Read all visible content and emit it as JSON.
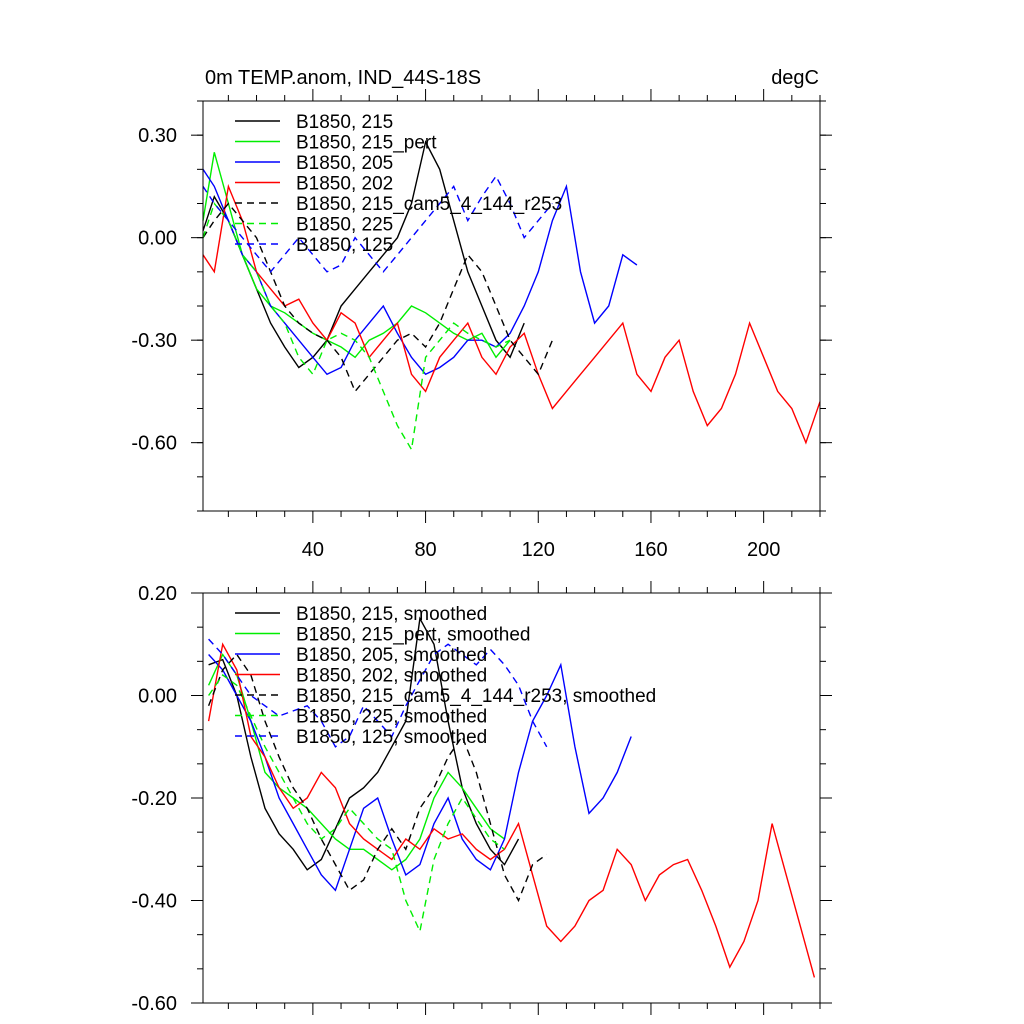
{
  "chart_data": [
    {
      "type": "line",
      "title": "0m TEMP.anom, IND_44S-18S",
      "units": "degC",
      "xlabel": "",
      "ylabel": "",
      "xlim": [
        1,
        220
      ],
      "ylim": [
        -0.8,
        0.4
      ],
      "xticks": [
        40,
        80,
        120,
        160,
        200
      ],
      "xtick_labels": [
        "40",
        "80",
        "120",
        "160",
        "200"
      ],
      "yticks": [
        0.3,
        0.0,
        -0.3,
        -0.6
      ],
      "ytick_labels": [
        "0.30",
        "0.00",
        "-0.30",
        "-0.60"
      ],
      "legend_position": "top-left",
      "series": [
        {
          "name": "B1850, 215",
          "color": "#000000",
          "dash": false,
          "x": [
            1,
            5,
            10,
            15,
            20,
            25,
            30,
            35,
            40,
            45,
            50,
            55,
            60,
            65,
            70,
            75,
            80,
            85,
            90,
            95,
            100,
            105,
            110,
            115
          ],
          "values": [
            0.02,
            0.12,
            0.05,
            -0.05,
            -0.15,
            -0.25,
            -0.32,
            -0.38,
            -0.35,
            -0.3,
            -0.2,
            -0.15,
            -0.1,
            -0.05,
            0.0,
            0.1,
            0.28,
            0.2,
            0.05,
            -0.1,
            -0.2,
            -0.3,
            -0.35,
            -0.25
          ]
        },
        {
          "name": "B1850, 215_pert",
          "color": "#00ee00",
          "dash": false,
          "x": [
            1,
            5,
            10,
            15,
            20,
            25,
            30,
            35,
            40,
            45,
            50,
            55,
            60,
            65,
            70,
            75,
            80,
            85,
            90,
            95,
            100,
            105,
            110
          ],
          "values": [
            0.05,
            0.25,
            0.1,
            -0.05,
            -0.15,
            -0.2,
            -0.22,
            -0.25,
            -0.28,
            -0.3,
            -0.32,
            -0.35,
            -0.3,
            -0.28,
            -0.25,
            -0.2,
            -0.22,
            -0.25,
            -0.28,
            -0.3,
            -0.28,
            -0.35,
            -0.3
          ]
        },
        {
          "name": "B1850, 205",
          "color": "#0000ff",
          "dash": false,
          "x": [
            1,
            5,
            10,
            15,
            20,
            25,
            30,
            35,
            40,
            45,
            50,
            55,
            60,
            65,
            70,
            75,
            80,
            85,
            90,
            95,
            100,
            105,
            110,
            115,
            120,
            125,
            130,
            135,
            140,
            145,
            150,
            155
          ],
          "values": [
            0.2,
            0.15,
            0.05,
            -0.05,
            -0.1,
            -0.2,
            -0.25,
            -0.3,
            -0.35,
            -0.4,
            -0.38,
            -0.3,
            -0.25,
            -0.2,
            -0.28,
            -0.35,
            -0.4,
            -0.38,
            -0.35,
            -0.3,
            -0.3,
            -0.32,
            -0.28,
            -0.2,
            -0.1,
            0.05,
            0.15,
            -0.1,
            -0.25,
            -0.2,
            -0.05,
            -0.08
          ]
        },
        {
          "name": "B1850, 202",
          "color": "#ff0000",
          "dash": false,
          "x": [
            1,
            5,
            10,
            15,
            20,
            25,
            30,
            35,
            40,
            45,
            50,
            55,
            60,
            65,
            70,
            75,
            80,
            85,
            90,
            95,
            100,
            105,
            110,
            115,
            120,
            125,
            130,
            135,
            140,
            145,
            150,
            155,
            160,
            165,
            170,
            175,
            180,
            185,
            190,
            195,
            200,
            205,
            210,
            215,
            220
          ],
          "values": [
            -0.05,
            -0.1,
            0.15,
            0.05,
            -0.1,
            -0.15,
            -0.2,
            -0.18,
            -0.25,
            -0.3,
            -0.22,
            -0.25,
            -0.35,
            -0.3,
            -0.25,
            -0.4,
            -0.45,
            -0.35,
            -0.3,
            -0.25,
            -0.35,
            -0.4,
            -0.32,
            -0.28,
            -0.4,
            -0.5,
            -0.45,
            -0.4,
            -0.35,
            -0.3,
            -0.25,
            -0.4,
            -0.45,
            -0.35,
            -0.3,
            -0.45,
            -0.55,
            -0.5,
            -0.4,
            -0.25,
            -0.35,
            -0.45,
            -0.5,
            -0.6,
            -0.48
          ]
        },
        {
          "name": "B1850, 215_cam5_4_144_r253",
          "color": "#000000",
          "dash": true,
          "x": [
            1,
            5,
            10,
            15,
            20,
            25,
            30,
            35,
            40,
            45,
            50,
            55,
            60,
            65,
            70,
            75,
            80,
            85,
            90,
            95,
            100,
            105,
            110,
            115,
            120,
            125
          ],
          "values": [
            0.0,
            0.05,
            0.1,
            0.05,
            0.0,
            -0.1,
            -0.2,
            -0.25,
            -0.28,
            -0.3,
            -0.35,
            -0.45,
            -0.4,
            -0.35,
            -0.3,
            -0.28,
            -0.32,
            -0.25,
            -0.15,
            -0.05,
            -0.1,
            -0.2,
            -0.3,
            -0.35,
            -0.4,
            -0.3
          ]
        },
        {
          "name": "B1850, 225",
          "color": "#00ee00",
          "dash": true,
          "x": [
            1,
            5,
            10,
            15,
            20,
            25,
            30,
            35,
            40,
            45,
            50,
            55,
            60,
            65,
            70,
            75,
            80,
            85,
            90,
            95,
            100,
            105,
            110
          ],
          "values": [
            0.0,
            0.1,
            0.05,
            -0.05,
            -0.1,
            -0.2,
            -0.25,
            -0.35,
            -0.4,
            -0.3,
            -0.28,
            -0.3,
            -0.35,
            -0.45,
            -0.55,
            -0.62,
            -0.35,
            -0.3,
            -0.25,
            -0.28,
            -0.3,
            -0.32,
            -0.3
          ]
        },
        {
          "name": "B1850, 125",
          "color": "#0000ff",
          "dash": true,
          "x": [
            1,
            5,
            10,
            15,
            20,
            25,
            30,
            35,
            40,
            45,
            50,
            55,
            60,
            65,
            70,
            75,
            80,
            85,
            90,
            95,
            100,
            105,
            110,
            115,
            120,
            125
          ],
          "values": [
            0.15,
            0.1,
            0.05,
            0.0,
            -0.05,
            -0.1,
            -0.05,
            0.0,
            -0.05,
            -0.1,
            -0.08,
            0.0,
            -0.05,
            -0.1,
            -0.05,
            0.0,
            0.05,
            0.1,
            0.15,
            0.05,
            0.12,
            0.18,
            0.1,
            0.0,
            0.05,
            0.1
          ]
        }
      ]
    },
    {
      "type": "line",
      "title": "",
      "xlabel": "",
      "ylabel": "",
      "xlim": [
        1,
        220
      ],
      "ylim": [
        -0.6,
        0.2
      ],
      "xticks": [
        40,
        80,
        120,
        160,
        200
      ],
      "yticks": [
        0.2,
        0.0,
        -0.2,
        -0.4,
        -0.6
      ],
      "ytick_labels": [
        "0.20",
        "0.00",
        "-0.20",
        "-0.40",
        "-0.60"
      ],
      "legend_position": "top-left",
      "series": [
        {
          "name": "B1850, 215, smoothed",
          "color": "#000000",
          "dash": false,
          "x": [
            3,
            8,
            13,
            18,
            23,
            28,
            33,
            38,
            43,
            48,
            53,
            58,
            63,
            68,
            73,
            78,
            83,
            88,
            93,
            98,
            103,
            108,
            113
          ],
          "values": [
            0.06,
            0.07,
            0.0,
            -0.12,
            -0.22,
            -0.27,
            -0.3,
            -0.34,
            -0.32,
            -0.26,
            -0.2,
            -0.18,
            -0.15,
            -0.1,
            -0.05,
            0.15,
            0.1,
            -0.05,
            -0.18,
            -0.25,
            -0.3,
            -0.33,
            -0.28
          ]
        },
        {
          "name": "B1850, 215_pert, smoothed",
          "color": "#00ee00",
          "dash": false,
          "x": [
            3,
            8,
            13,
            18,
            23,
            28,
            33,
            38,
            43,
            48,
            53,
            58,
            63,
            68,
            73,
            78,
            83,
            88,
            93,
            98,
            103,
            108
          ],
          "values": [
            0.02,
            0.08,
            0.04,
            -0.05,
            -0.15,
            -0.18,
            -0.2,
            -0.22,
            -0.25,
            -0.28,
            -0.3,
            -0.3,
            -0.32,
            -0.34,
            -0.32,
            -0.28,
            -0.2,
            -0.15,
            -0.18,
            -0.22,
            -0.26,
            -0.28
          ]
        },
        {
          "name": "B1850, 205, smoothed",
          "color": "#0000ff",
          "dash": false,
          "x": [
            3,
            8,
            13,
            18,
            23,
            28,
            33,
            38,
            43,
            48,
            53,
            58,
            63,
            68,
            73,
            78,
            83,
            88,
            93,
            98,
            103,
            108,
            113,
            118,
            123,
            128,
            133,
            138,
            143,
            148,
            153
          ],
          "values": [
            0.08,
            0.05,
            0.0,
            -0.05,
            -0.12,
            -0.2,
            -0.25,
            -0.3,
            -0.35,
            -0.38,
            -0.3,
            -0.22,
            -0.2,
            -0.28,
            -0.35,
            -0.33,
            -0.25,
            -0.2,
            -0.28,
            -0.32,
            -0.34,
            -0.28,
            -0.15,
            -0.05,
            0.0,
            0.06,
            -0.1,
            -0.23,
            -0.2,
            -0.15,
            -0.08
          ]
        },
        {
          "name": "B1850, 202, smoothed",
          "color": "#ff0000",
          "dash": false,
          "x": [
            3,
            8,
            13,
            18,
            23,
            28,
            33,
            38,
            43,
            48,
            53,
            58,
            63,
            68,
            73,
            78,
            83,
            88,
            93,
            98,
            103,
            108,
            113,
            118,
            123,
            128,
            133,
            138,
            143,
            148,
            153,
            158,
            163,
            168,
            173,
            178,
            183,
            188,
            193,
            198,
            203,
            208,
            213,
            218
          ],
          "values": [
            -0.05,
            0.1,
            0.05,
            -0.08,
            -0.12,
            -0.18,
            -0.22,
            -0.2,
            -0.15,
            -0.18,
            -0.25,
            -0.28,
            -0.3,
            -0.32,
            -0.28,
            -0.3,
            -0.26,
            -0.28,
            -0.27,
            -0.3,
            -0.32,
            -0.3,
            -0.25,
            -0.35,
            -0.45,
            -0.48,
            -0.45,
            -0.4,
            -0.38,
            -0.3,
            -0.33,
            -0.4,
            -0.35,
            -0.33,
            -0.32,
            -0.38,
            -0.45,
            -0.53,
            -0.48,
            -0.4,
            -0.25,
            -0.35,
            -0.45,
            -0.55
          ]
        },
        {
          "name": "B1850, 215_cam5_4_144_r253, smoothed",
          "color": "#000000",
          "dash": true,
          "x": [
            3,
            8,
            13,
            18,
            23,
            28,
            33,
            38,
            43,
            48,
            53,
            58,
            63,
            68,
            73,
            78,
            83,
            88,
            93,
            98,
            103,
            108,
            113,
            118,
            123
          ],
          "values": [
            -0.02,
            0.05,
            0.08,
            0.04,
            -0.05,
            -0.12,
            -0.18,
            -0.22,
            -0.28,
            -0.33,
            -0.38,
            -0.36,
            -0.3,
            -0.26,
            -0.3,
            -0.22,
            -0.18,
            -0.12,
            -0.08,
            -0.15,
            -0.25,
            -0.35,
            -0.4,
            -0.33,
            -0.31
          ]
        },
        {
          "name": "B1850, 225, smoothed",
          "color": "#00ee00",
          "dash": true,
          "x": [
            3,
            8,
            13,
            18,
            23,
            28,
            33,
            38,
            43,
            48,
            53,
            58,
            63,
            68,
            73,
            78,
            83,
            88,
            93,
            98,
            103,
            108
          ],
          "values": [
            0.0,
            0.04,
            0.02,
            -0.04,
            -0.1,
            -0.15,
            -0.2,
            -0.25,
            -0.28,
            -0.26,
            -0.22,
            -0.25,
            -0.28,
            -0.3,
            -0.4,
            -0.46,
            -0.32,
            -0.25,
            -0.2,
            -0.24,
            -0.28,
            -0.3
          ]
        },
        {
          "name": "B1850, 125, smoothed",
          "color": "#0000ff",
          "dash": true,
          "x": [
            3,
            8,
            13,
            18,
            23,
            28,
            33,
            38,
            43,
            48,
            53,
            58,
            63,
            68,
            73,
            78,
            83,
            88,
            93,
            98,
            103,
            108,
            113,
            118,
            123
          ],
          "values": [
            0.11,
            0.08,
            0.04,
            0.0,
            -0.02,
            -0.04,
            -0.03,
            -0.02,
            -0.05,
            -0.1,
            -0.08,
            -0.02,
            -0.05,
            -0.08,
            -0.02,
            0.03,
            0.08,
            0.1,
            0.08,
            0.06,
            0.09,
            0.06,
            0.02,
            -0.05,
            -0.1
          ]
        }
      ]
    }
  ]
}
